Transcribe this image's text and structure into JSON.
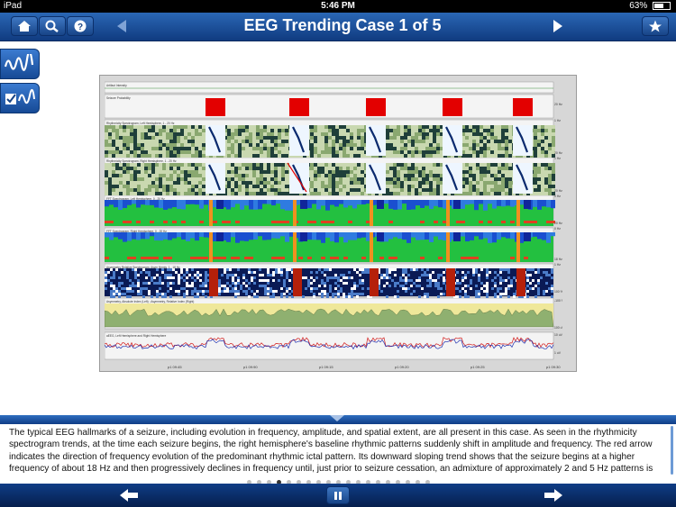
{
  "status_bar": {
    "device": "iPad",
    "time": "5:46 PM",
    "battery": "63%"
  },
  "nav": {
    "title": "EEG Trending Case 1 of 5",
    "icons": [
      "home-icon",
      "search-icon",
      "help-icon",
      "previous-case-arrow",
      "next-case-arrow",
      "star-icon"
    ]
  },
  "side_tools": [
    "waveform-icon",
    "checklist-waveform-icon"
  ],
  "figure": {
    "panels": [
      "Artifact Intensity",
      "Seizure Probability",
      "Rhythmicity Spectrogram, Left Hemisphere, 1 - 20 Hz",
      "Rhythmicity Spectrogram, Right Hemisphere, 1 - 20 Hz",
      "FFT Spectrogram, Left Hemisphere, 0 - 20 Hz",
      "FFT Spectrogram, Right Hemisphere, 0 - 20 Hz",
      "Asymmetry Relative Spectrogram, Asym Hemis, 1 - 18 Hz",
      "Asymmetry, Absolute Index (Left) ; Asymmetry, Relative Index (Right)",
      "aEEG, Left Hemisphere and Right Hemisphere"
    ],
    "time_labels": [
      "p1 09:45",
      "p1 09:90",
      "p1 09:15",
      "p1 09:20",
      "p1 09:25",
      "p1 09:30"
    ],
    "right_labels": [
      "20 Hz",
      "1 Hz",
      "20 Hz",
      "1 Hz",
      "20 Hz",
      "0 Hz",
      "20 Hz",
      "0 Hz",
      "18 Hz",
      "1 Hz",
      "100 %",
      "-100 %",
      "100 uV",
      "10 uV",
      "1 uV"
    ]
  },
  "caption": {
    "text": "The typical EEG hallmarks of a seizure, including evolution in frequency, amplitude, and spatial extent, are all present in this case. As seen in the rhythmicity spectrogram trends, at the time each seizure begins, the right hemisphere's baseline rhythmic patterns suddenly shift in amplitude and frequency. The red arrow indicates the direction of frequency evolution of the predominant rhythmic ictal pattern. Its downward sloping trend shows that the seizure begins at a higher frequency of about 18 Hz and then progressively declines in frequency until, just prior to seizure cessation, an admixture of approximately 2 and 5 Hz patterns is present. The EEG accompanying these changes"
  },
  "pager": {
    "total": 19,
    "current": 4
  },
  "toolbar": {
    "icons": [
      "back-arrow-icon",
      "pause-icon",
      "forward-arrow-icon"
    ]
  },
  "colors": {
    "nav_top": "#2a67b5",
    "nav_bottom": "#103b80",
    "seizure_red": "#e30000"
  }
}
